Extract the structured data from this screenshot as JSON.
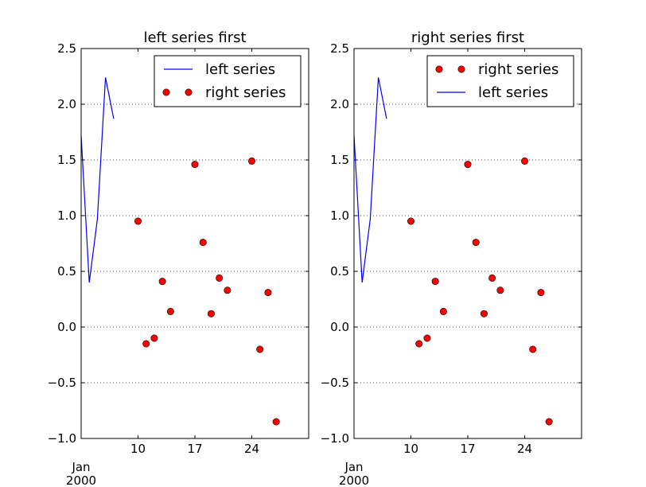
{
  "chart_data": [
    {
      "type": "line",
      "title": "left series first",
      "xlabel": "",
      "ylabel": "",
      "xlim": [
        "2000-01-03",
        "2000-01-31"
      ],
      "ylim": [
        -1.0,
        2.5
      ],
      "x_ticks": [
        "2000-01-10",
        "2000-01-17",
        "2000-01-24"
      ],
      "x_tick_labels": [
        "10",
        "17",
        "24"
      ],
      "x_offset_label": [
        "Jan",
        "2000"
      ],
      "y_ticks": [
        -1.0,
        -0.5,
        0.0,
        0.5,
        1.0,
        1.5,
        2.0,
        2.5
      ],
      "y_tick_labels": [
        "−1.0",
        "−0.5",
        "0.0",
        "0.5",
        "1.0",
        "1.5",
        "2.0",
        "2.5"
      ],
      "grid": "horizontal dotted",
      "legend_position": "upper right",
      "series": [
        {
          "name": "left series",
          "style": "line",
          "color": "#0000ff",
          "points": [
            {
              "x": "2000-01-03",
              "y": 1.72
            },
            {
              "x": "2000-01-04",
              "y": 0.4
            },
            {
              "x": "2000-01-05",
              "y": 0.97
            },
            {
              "x": "2000-01-06",
              "y": 2.24
            },
            {
              "x": "2000-01-07",
              "y": 1.87
            }
          ]
        },
        {
          "name": "right series",
          "style": "marker",
          "color": "#ff0000",
          "points": [
            {
              "x": "2000-01-10",
              "y": 0.95
            },
            {
              "x": "2000-01-11",
              "y": -0.15
            },
            {
              "x": "2000-01-12",
              "y": -0.1
            },
            {
              "x": "2000-01-13",
              "y": 0.41
            },
            {
              "x": "2000-01-14",
              "y": 0.14
            },
            {
              "x": "2000-01-17",
              "y": 1.46
            },
            {
              "x": "2000-01-18",
              "y": 0.76
            },
            {
              "x": "2000-01-19",
              "y": 0.12
            },
            {
              "x": "2000-01-20",
              "y": 0.44
            },
            {
              "x": "2000-01-21",
              "y": 0.33
            },
            {
              "x": "2000-01-24",
              "y": 1.49
            },
            {
              "x": "2000-01-25",
              "y": -0.2
            },
            {
              "x": "2000-01-26",
              "y": 0.31
            },
            {
              "x": "2000-01-27",
              "y": -0.85
            }
          ]
        }
      ],
      "legend_order": [
        "left series",
        "right series"
      ]
    },
    {
      "type": "line",
      "title": "right series first",
      "xlabel": "",
      "ylabel": "",
      "xlim": [
        "2000-01-03",
        "2000-01-31"
      ],
      "ylim": [
        -1.0,
        2.5
      ],
      "x_ticks": [
        "2000-01-10",
        "2000-01-17",
        "2000-01-24"
      ],
      "x_tick_labels": [
        "10",
        "17",
        "24"
      ],
      "x_offset_label": [
        "Jan",
        "2000"
      ],
      "y_ticks": [
        -1.0,
        -0.5,
        0.0,
        0.5,
        1.0,
        1.5,
        2.0,
        2.5
      ],
      "y_tick_labels": [
        "−1.0",
        "−0.5",
        "0.0",
        "0.5",
        "1.0",
        "1.5",
        "2.0",
        "2.5"
      ],
      "grid": "horizontal dotted",
      "legend_position": "upper right",
      "series": [
        {
          "name": "left series",
          "style": "line",
          "color": "#0000ff",
          "points": [
            {
              "x": "2000-01-03",
              "y": 1.72
            },
            {
              "x": "2000-01-04",
              "y": 0.4
            },
            {
              "x": "2000-01-05",
              "y": 0.97
            },
            {
              "x": "2000-01-06",
              "y": 2.24
            },
            {
              "x": "2000-01-07",
              "y": 1.87
            }
          ]
        },
        {
          "name": "right series",
          "style": "marker",
          "color": "#ff0000",
          "points": [
            {
              "x": "2000-01-10",
              "y": 0.95
            },
            {
              "x": "2000-01-11",
              "y": -0.15
            },
            {
              "x": "2000-01-12",
              "y": -0.1
            },
            {
              "x": "2000-01-13",
              "y": 0.41
            },
            {
              "x": "2000-01-14",
              "y": 0.14
            },
            {
              "x": "2000-01-17",
              "y": 1.46
            },
            {
              "x": "2000-01-18",
              "y": 0.76
            },
            {
              "x": "2000-01-19",
              "y": 0.12
            },
            {
              "x": "2000-01-20",
              "y": 0.44
            },
            {
              "x": "2000-01-21",
              "y": 0.33
            },
            {
              "x": "2000-01-24",
              "y": 1.49
            },
            {
              "x": "2000-01-25",
              "y": -0.2
            },
            {
              "x": "2000-01-26",
              "y": 0.31
            },
            {
              "x": "2000-01-27",
              "y": -0.85
            }
          ]
        }
      ],
      "legend_order": [
        "right series",
        "left series"
      ]
    }
  ]
}
